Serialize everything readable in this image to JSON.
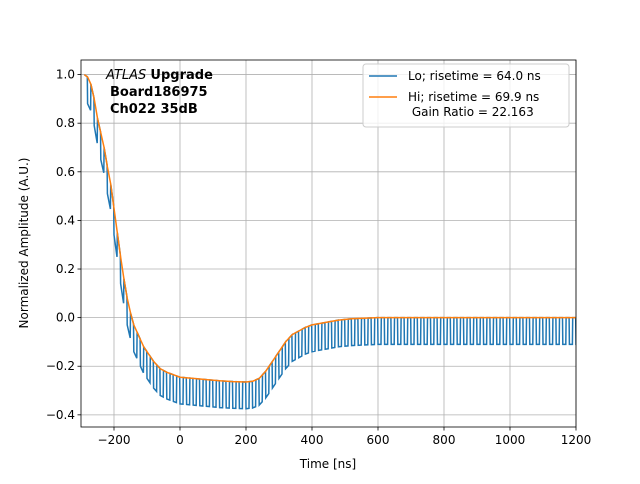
{
  "chart_data": {
    "type": "line",
    "xlabel": "Time [ns]",
    "ylabel": "Normalized Amplitude (A.U.)",
    "xlim": [
      -300,
      1200
    ],
    "ylim": [
      -0.45,
      1.06
    ],
    "xticks": [
      -200,
      0,
      200,
      400,
      600,
      800,
      1000,
      1200
    ],
    "xtick_labels": [
      "−200",
      "0",
      "200",
      "400",
      "600",
      "800",
      "1000",
      "1200"
    ],
    "yticks": [
      -0.4,
      -0.2,
      0.0,
      0.2,
      0.4,
      0.6,
      0.8,
      1.0
    ],
    "ytick_labels": [
      "−0.4",
      "−0.2",
      "0.0",
      "0.2",
      "0.4",
      "0.6",
      "0.8",
      "1.0"
    ],
    "grid": true,
    "legend_position": "top-right",
    "annotation": {
      "italic": "ATLAS",
      "bold": "Upgrade",
      "line2": "Board186975",
      "line3": "Ch022 35dB"
    },
    "series": [
      {
        "name": "Lo; risetime = 64.0 ns",
        "color": "#1f77b4",
        "shape": "square-wave following Hi curve",
        "period_ns": 20,
        "dip_depth": 0.11
      },
      {
        "name": "Hi; risetime = 69.9 ns",
        "name_line2": " Gain Ratio = 22.163",
        "color": "#ff7f0e",
        "x": [
          -290,
          -280,
          -270,
          -260,
          -250,
          -240,
          -230,
          -220,
          -210,
          -200,
          -190,
          -180,
          -170,
          -160,
          -150,
          -140,
          -130,
          -120,
          -110,
          -100,
          -80,
          -60,
          -40,
          -20,
          0,
          40,
          80,
          120,
          160,
          200,
          220,
          240,
          260,
          280,
          300,
          320,
          340,
          360,
          380,
          400,
          440,
          480,
          520,
          600,
          800,
          1000,
          1200
        ],
        "y": [
          1.0,
          0.99,
          0.96,
          0.9,
          0.82,
          0.76,
          0.7,
          0.62,
          0.55,
          0.45,
          0.35,
          0.25,
          0.16,
          0.08,
          0.02,
          -0.03,
          -0.06,
          -0.09,
          -0.12,
          -0.14,
          -0.18,
          -0.21,
          -0.225,
          -0.235,
          -0.245,
          -0.25,
          -0.255,
          -0.26,
          -0.263,
          -0.265,
          -0.262,
          -0.25,
          -0.22,
          -0.18,
          -0.14,
          -0.1,
          -0.07,
          -0.055,
          -0.04,
          -0.03,
          -0.02,
          -0.01,
          -0.005,
          0.0,
          0.0,
          0.0,
          0.0
        ]
      }
    ]
  }
}
